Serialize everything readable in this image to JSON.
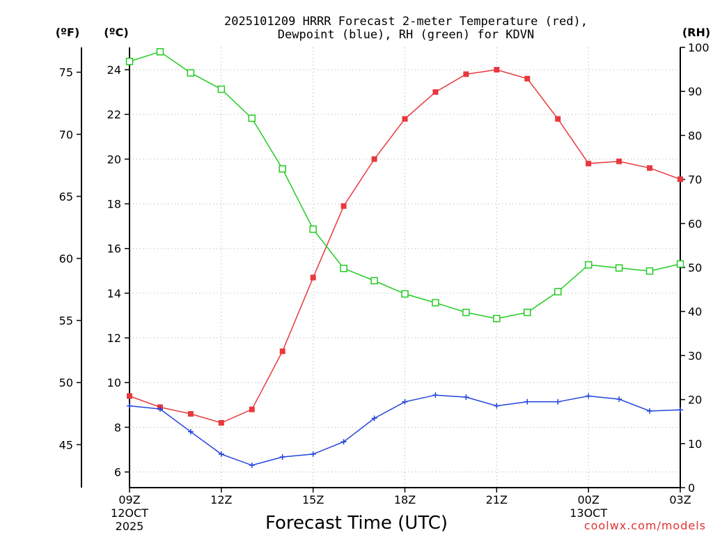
{
  "chart_data": {
    "type": "line",
    "title_line1": "2025101209 HRRR Forecast 2-meter Temperature (red),",
    "title_line2": "Dewpoint (blue), RH (green) for KDVN",
    "xlabel": "Forecast Time (UTC)",
    "credit": "coolwx.com/models",
    "units": {
      "fahrenheit": "(ºF)",
      "celsius": "(ºC)",
      "rh": "(RH)"
    },
    "x_hours": [
      0,
      1,
      2,
      3,
      4,
      5,
      6,
      7,
      8,
      9,
      10,
      11,
      12,
      13,
      14,
      15,
      16,
      17,
      18
    ],
    "x_ticks": [
      {
        "hour": 0,
        "label": "09Z",
        "sub1": "12OCT",
        "sub2": "2025"
      },
      {
        "hour": 3,
        "label": "12Z",
        "sub1": "",
        "sub2": ""
      },
      {
        "hour": 6,
        "label": "15Z",
        "sub1": "",
        "sub2": ""
      },
      {
        "hour": 9,
        "label": "18Z",
        "sub1": "",
        "sub2": ""
      },
      {
        "hour": 12,
        "label": "21Z",
        "sub1": "",
        "sub2": ""
      },
      {
        "hour": 15,
        "label": "00Z",
        "sub1": "13OCT",
        "sub2": ""
      },
      {
        "hour": 18,
        "label": "03Z",
        "sub1": "",
        "sub2": ""
      }
    ],
    "celsius_range": [
      5.3,
      25.0
    ],
    "celsius_ticks": [
      "6",
      "8",
      "10",
      "12",
      "14",
      "16",
      "18",
      "20",
      "22",
      "24"
    ],
    "fahrenheit_ticks": [
      "45",
      "50",
      "55",
      "60",
      "65",
      "70",
      "75"
    ],
    "rh_range": [
      0,
      100
    ],
    "rh_ticks": [
      "0",
      "10",
      "20",
      "30",
      "40",
      "50",
      "60",
      "70",
      "80",
      "90",
      "100"
    ],
    "grid": true,
    "series": [
      {
        "name": "Temperature",
        "unit": "C",
        "color": "#e8383d",
        "marker": "filled-square",
        "values": [
          9.4,
          8.9,
          8.6,
          8.2,
          8.8,
          11.4,
          14.7,
          17.9,
          20.0,
          21.8,
          23.0,
          23.8,
          24.0,
          23.6,
          21.8,
          19.8,
          19.9,
          19.6,
          19.1
        ]
      },
      {
        "name": "Dewpoint",
        "unit": "C",
        "color": "#2244dd",
        "marker": "plus",
        "values": [
          8.96,
          8.82,
          7.8,
          6.8,
          6.3,
          6.67,
          6.8,
          7.35,
          8.4,
          9.14,
          9.44,
          9.35,
          8.96,
          9.14,
          9.14,
          9.4,
          9.26,
          8.73,
          8.78
        ]
      },
      {
        "name": "RH",
        "unit": "%",
        "color": "#22cc22",
        "marker": "open-square",
        "values": [
          96.8,
          99.0,
          94.2,
          90.5,
          83.9,
          72.4,
          58.7,
          49.8,
          47.0,
          44.0,
          42.0,
          39.8,
          38.4,
          39.8,
          44.5,
          50.6,
          49.9,
          49.2,
          50.8
        ]
      }
    ]
  }
}
